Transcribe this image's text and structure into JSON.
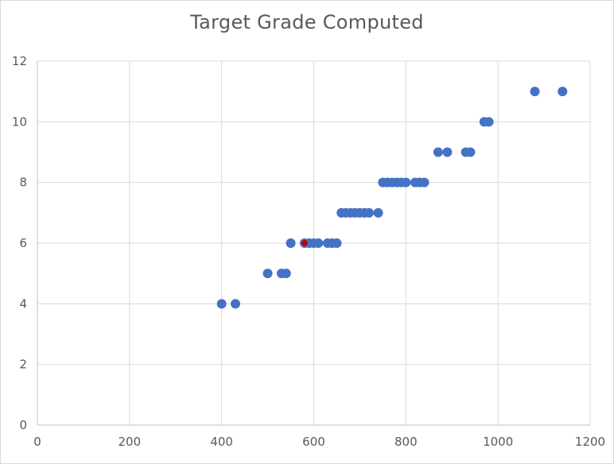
{
  "chart_data": {
    "type": "scatter",
    "title": "Target Grade Computed",
    "xlabel": "",
    "ylabel": "",
    "xlim": [
      0,
      1200
    ],
    "ylim": [
      0,
      12
    ],
    "x_ticks": [
      0,
      200,
      400,
      600,
      800,
      1000,
      1200
    ],
    "y_ticks": [
      0,
      2,
      4,
      6,
      8,
      10,
      12
    ],
    "x_tick_labels": [
      "0",
      "200",
      "400",
      "600",
      "800",
      "1000",
      "1200"
    ],
    "y_tick_labels": [
      "0",
      "2",
      "4",
      "6",
      "8",
      "10",
      "12"
    ],
    "grid": true,
    "legend": "none",
    "series": [
      {
        "color": "#4472c4",
        "points": [
          [
            400,
            4
          ],
          [
            430,
            4
          ],
          [
            500,
            5
          ],
          [
            530,
            5
          ],
          [
            540,
            5
          ],
          [
            550,
            6
          ],
          [
            580,
            6
          ],
          [
            590,
            6
          ],
          [
            600,
            6
          ],
          [
            610,
            6
          ],
          [
            630,
            6
          ],
          [
            640,
            6
          ],
          [
            650,
            6
          ],
          [
            660,
            7
          ],
          [
            670,
            7
          ],
          [
            680,
            7
          ],
          [
            690,
            7
          ],
          [
            700,
            7
          ],
          [
            710,
            7
          ],
          [
            720,
            7
          ],
          [
            740,
            7
          ],
          [
            750,
            8
          ],
          [
            760,
            8
          ],
          [
            770,
            8
          ],
          [
            780,
            8
          ],
          [
            790,
            8
          ],
          [
            800,
            8
          ],
          [
            820,
            8
          ],
          [
            830,
            8
          ],
          [
            840,
            8
          ],
          [
            870,
            9
          ],
          [
            890,
            9
          ],
          [
            930,
            9
          ],
          [
            940,
            9
          ],
          [
            970,
            10
          ],
          [
            980,
            10
          ],
          [
            1080,
            11
          ],
          [
            1140,
            11
          ]
        ]
      },
      {
        "color": "#c00000",
        "points": [
          [
            580,
            6
          ]
        ]
      }
    ]
  }
}
